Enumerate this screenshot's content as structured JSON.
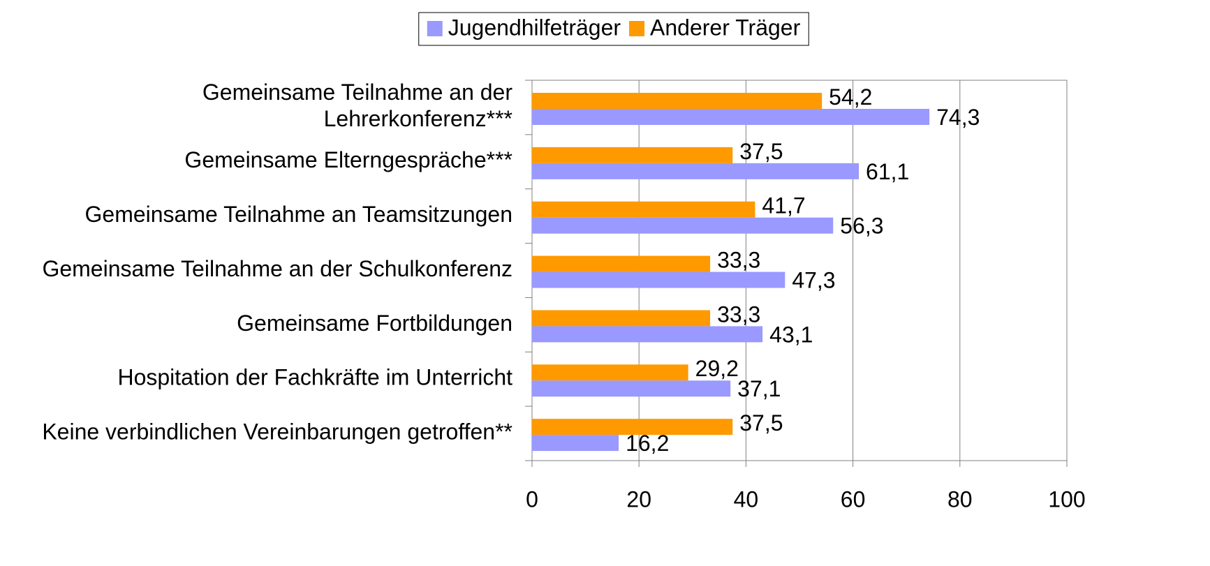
{
  "chart_data": {
    "type": "hbar",
    "categories": [
      "Gemeinsame Teilnahme an der\nLehrerkonferenz***",
      "Gemeinsame Elterngespräche***",
      "Gemeinsame Teilnahme an Teamsitzungen",
      "Gemeinsame Teilnahme an der Schulkonferenz",
      "Gemeinsame Fortbildungen",
      "Hospitation der Fachkräfte im Unterricht",
      "Keine verbindlichen Vereinbarungen getroffen**"
    ],
    "series": [
      {
        "name": "Jugendhilfeträger",
        "color": "#9999ff",
        "values": [
          74.3,
          61.1,
          56.3,
          47.3,
          43.1,
          37.1,
          16.2
        ],
        "value_labels": [
          "74,3",
          "61,1",
          "56,3",
          "47,3",
          "43,1",
          "37,1",
          "16,2"
        ]
      },
      {
        "name": "Anderer Träger",
        "color": "#ff9900",
        "values": [
          54.2,
          37.5,
          41.7,
          33.3,
          33.3,
          29.2,
          37.5
        ],
        "value_labels": [
          "54,2",
          "37,5",
          "41,7",
          "33,3",
          "33,3",
          "29,2",
          "37,5"
        ]
      }
    ],
    "xlim": [
      0,
      100
    ],
    "xticks": [
      0,
      20,
      40,
      60,
      80,
      100
    ],
    "grid": true,
    "legend": "top"
  }
}
